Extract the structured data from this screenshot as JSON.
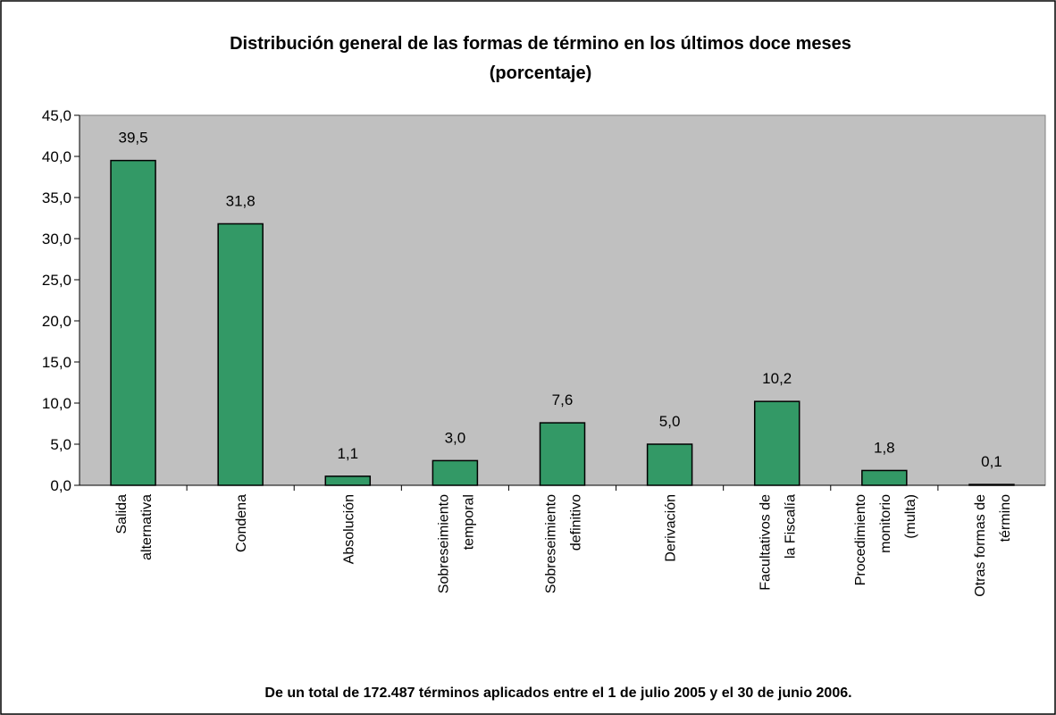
{
  "chart_data": {
    "type": "bar",
    "title": "Distribución general de las formas de término en los últimos doce meses",
    "subtitle": "(porcentaje)",
    "categories": [
      [
        "Salida",
        "alternativa"
      ],
      [
        "Condena"
      ],
      [
        "Absolución"
      ],
      [
        "Sobreseimiento",
        "temporal"
      ],
      [
        "Sobreseimiento",
        "definitivo"
      ],
      [
        "Derivación"
      ],
      [
        "Facultativos de",
        "la Fiscalía"
      ],
      [
        "Procedimiento",
        "monitorio",
        "(multa)"
      ],
      [
        "Otras formas de",
        "término"
      ]
    ],
    "values": [
      39.5,
      31.8,
      1.1,
      3.0,
      7.6,
      5.0,
      10.2,
      1.8,
      0.1
    ],
    "value_labels": [
      "39,5",
      "31,8",
      "1,1",
      "3,0",
      "7,6",
      "5,0",
      "10,2",
      "1,8",
      "0,1"
    ],
    "color": "#339966",
    "ylim": [
      0,
      45
    ],
    "yticks": [
      {
        "value": 0,
        "label": "0,0"
      },
      {
        "value": 5,
        "label": "5,0"
      },
      {
        "value": 10,
        "label": "10,0"
      },
      {
        "value": 15,
        "label": "15,0"
      },
      {
        "value": 20,
        "label": "20,0"
      },
      {
        "value": 25,
        "label": "25,0"
      },
      {
        "value": 30,
        "label": "30,0"
      },
      {
        "value": 35,
        "label": "35,0"
      },
      {
        "value": 40,
        "label": "40,0"
      },
      {
        "value": 45,
        "label": "45,0"
      }
    ],
    "grid": false,
    "note": "De un total de 172.487 términos aplicados entre el 1 de julio 2005 y el 30 de junio 2006."
  }
}
